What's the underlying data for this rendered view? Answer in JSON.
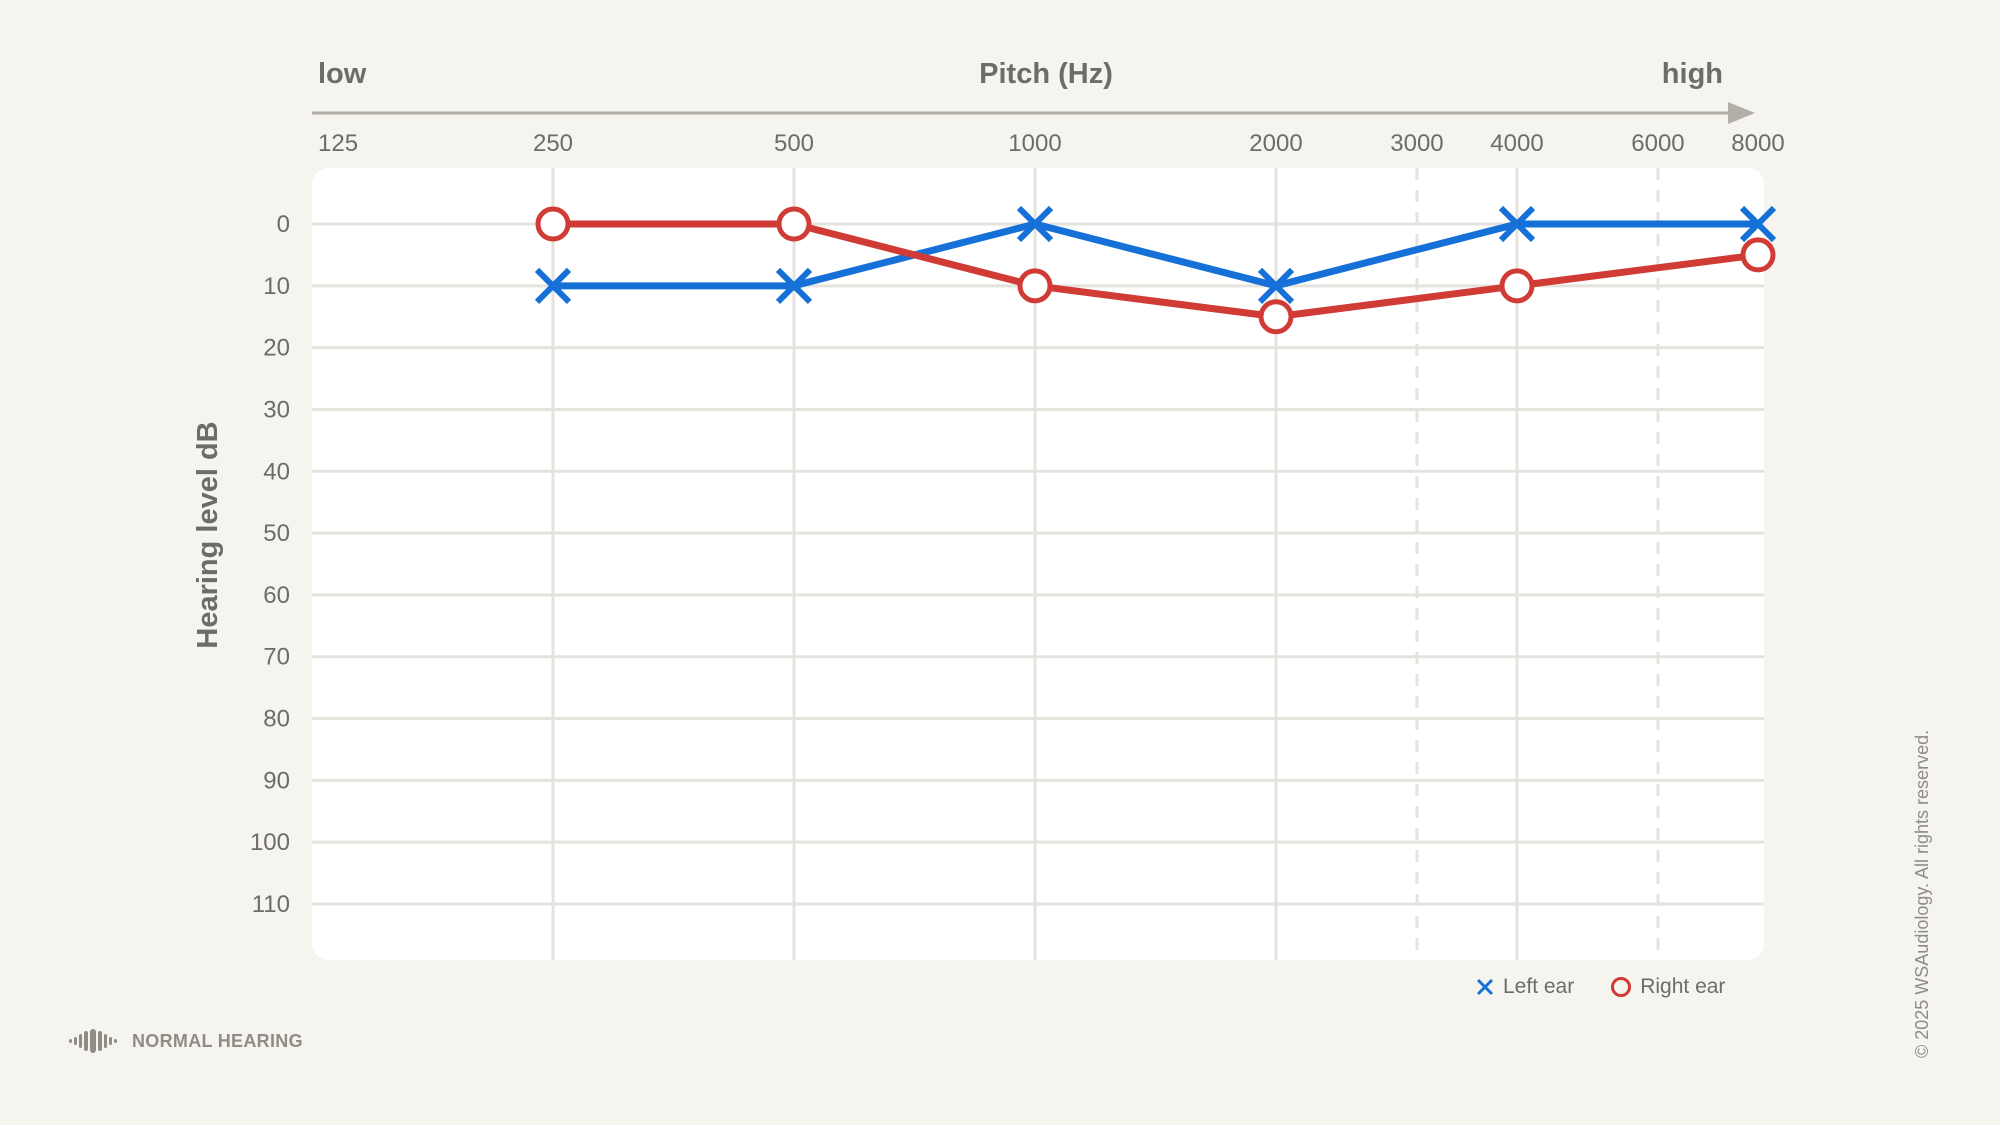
{
  "chart_data": {
    "type": "line",
    "top_label_low": "low",
    "top_label_high": "high",
    "x_title": "Pitch (Hz)",
    "y_title": "Hearing level dB",
    "x_ticks": [
      "125",
      "250",
      "500",
      "1000",
      "2000",
      "3000",
      "4000",
      "6000",
      "8000"
    ],
    "x_dashed_ticks": [
      "3000",
      "6000"
    ],
    "y_ticks": [
      0,
      10,
      20,
      30,
      40,
      50,
      60,
      70,
      80,
      90,
      100,
      110
    ],
    "y_direction": "inverted",
    "grid": true,
    "legend_position": "bottom-right",
    "series": [
      {
        "name": "Left ear",
        "marker": "x",
        "color": "#1570d8",
        "x": [
          "250",
          "500",
          "1000",
          "2000",
          "4000",
          "8000"
        ],
        "values": [
          10,
          10,
          0,
          10,
          0,
          0
        ]
      },
      {
        "name": "Right ear",
        "marker": "o",
        "color": "#d13b36",
        "x": [
          "250",
          "500",
          "1000",
          "2000",
          "4000",
          "8000"
        ],
        "values": [
          0,
          0,
          10,
          15,
          10,
          5
        ]
      }
    ]
  },
  "legend": {
    "left_label": "Left ear",
    "right_label": "Right ear"
  },
  "brand": {
    "label": "NORMAL HEARING"
  },
  "copyright": "© 2025 WSAudiology. All rights reserved."
}
